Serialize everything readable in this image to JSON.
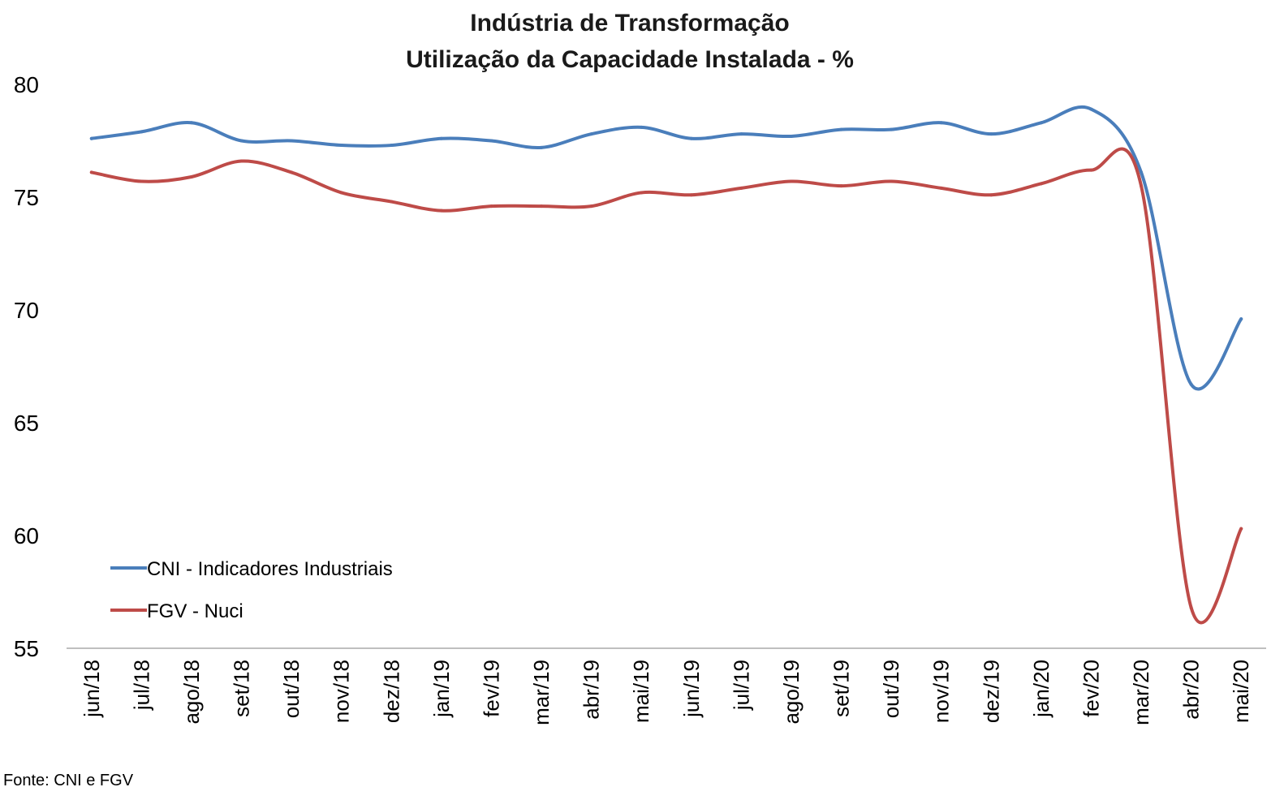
{
  "chart_data": {
    "type": "line",
    "title": "Indústria de Transformação",
    "subtitle": "Utilização da Capacidade Instalada - %",
    "xlabel": "",
    "ylabel": "",
    "categories": [
      "jun/18",
      "jul/18",
      "ago/18",
      "set/18",
      "out/18",
      "nov/18",
      "dez/18",
      "jan/19",
      "fev/19",
      "mar/19",
      "abr/19",
      "mai/19",
      "jun/19",
      "jul/19",
      "ago/19",
      "set/19",
      "out/19",
      "nov/19",
      "dez/19",
      "jan/20",
      "fev/20",
      "mar/20",
      "abr/20",
      "mai/20"
    ],
    "yticks": [
      "55",
      "60",
      "65",
      "70",
      "75",
      "80"
    ],
    "ylim": [
      55,
      80
    ],
    "grid": false,
    "legend_position": "bottom-left",
    "series": [
      {
        "name": "CNI - Indicadores Industriais",
        "color": "#4a7ebb",
        "values": [
          77.6,
          77.9,
          78.3,
          77.5,
          77.5,
          77.3,
          77.3,
          77.6,
          77.5,
          77.2,
          77.8,
          78.1,
          77.6,
          77.8,
          77.7,
          78.0,
          78.0,
          78.3,
          77.8,
          78.3,
          78.9,
          76.1,
          66.7,
          69.6
        ]
      },
      {
        "name": "FGV - Nuci",
        "color": "#be4b48",
        "values": [
          76.1,
          75.7,
          75.9,
          76.6,
          76.1,
          75.2,
          74.8,
          74.4,
          74.6,
          74.6,
          74.6,
          75.2,
          75.1,
          75.4,
          75.7,
          75.5,
          75.7,
          75.4,
          75.1,
          75.6,
          76.2,
          75.5,
          56.8,
          60.3
        ]
      }
    ],
    "source": "Fonte: CNI e FGV"
  }
}
